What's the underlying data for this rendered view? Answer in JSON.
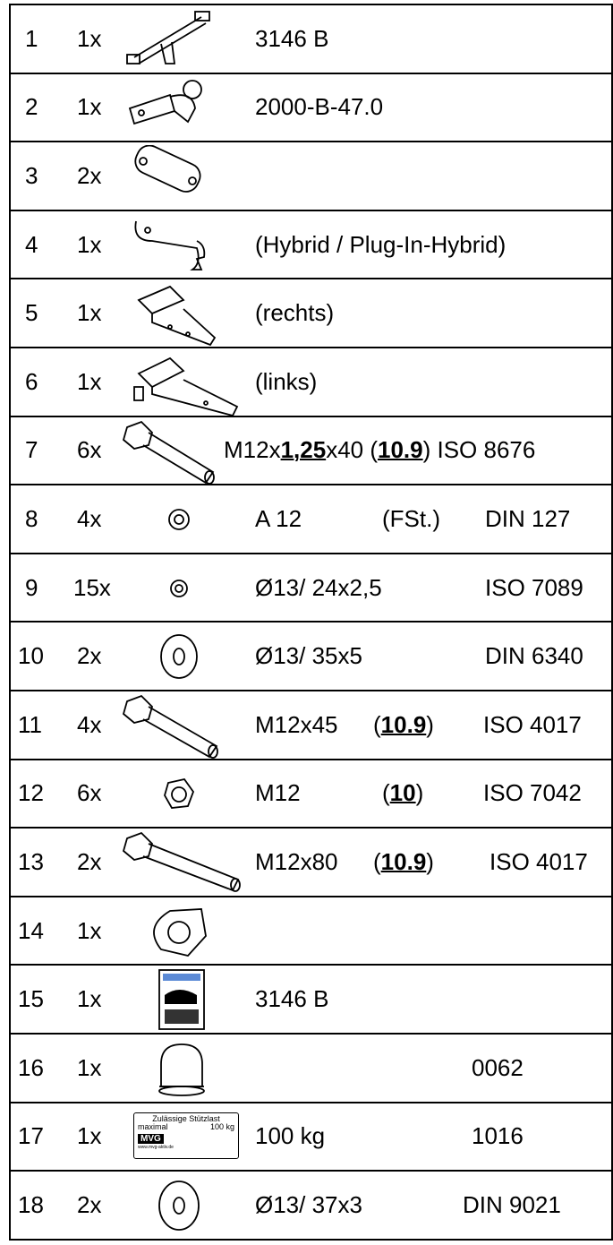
{
  "table": {
    "rows": [
      {
        "no": "1",
        "qty": "1x",
        "cells": [
          [
            {
              "text": "3146 B"
            }
          ]
        ]
      },
      {
        "no": "2",
        "qty": "1x",
        "cells": [
          [
            {
              "text": "2000-B-47.0"
            }
          ]
        ]
      },
      {
        "no": "3",
        "qty": "2x",
        "cells": []
      },
      {
        "no": "4",
        "qty": "1x",
        "cells": [
          [
            {
              "text": "(Hybrid / Plug-In-Hybrid)"
            }
          ]
        ]
      },
      {
        "no": "5",
        "qty": "1x",
        "cells": [
          [
            {
              "text": "(rechts)"
            }
          ]
        ]
      },
      {
        "no": "6",
        "qty": "1x",
        "cells": [
          [
            {
              "text": "(links)"
            }
          ]
        ]
      },
      {
        "no": "7",
        "qty": "6x",
        "cells": [
          [
            {
              "text": "M12x"
            },
            {
              "text": "1,25",
              "bold": true,
              "underline": true
            },
            {
              "text": "x40 ("
            },
            {
              "text": "10.9",
              "bold": true,
              "underline": true
            },
            {
              "text": ") ISO 8676"
            }
          ]
        ]
      },
      {
        "no": "8",
        "qty": "4x",
        "cells": [
          [
            {
              "text": "A 12"
            }
          ],
          [
            {
              "text": "(FSt.)"
            }
          ],
          [
            {
              "text": "DIN 127"
            }
          ]
        ]
      },
      {
        "no": "9",
        "qty": "15x",
        "cells": [
          [
            {
              "text": "Ø13/ 24x2,5"
            }
          ],
          [
            {
              "text": "ISO 7089"
            }
          ]
        ]
      },
      {
        "no": "10",
        "qty": "2x",
        "cells": [
          [
            {
              "text": "Ø13/ 35x5"
            }
          ],
          [
            {
              "text": "DIN 6340"
            }
          ]
        ]
      },
      {
        "no": "11",
        "qty": "4x",
        "cells": [
          [
            {
              "text": "M12x45"
            }
          ],
          [
            {
              "text": "("
            },
            {
              "text": "10.9",
              "bold": true,
              "underline": true
            },
            {
              "text": ")"
            }
          ],
          [
            {
              "text": "ISO 4017"
            }
          ]
        ]
      },
      {
        "no": "12",
        "qty": "6x",
        "cells": [
          [
            {
              "text": "M12"
            }
          ],
          [
            {
              "text": "("
            },
            {
              "text": "10",
              "bold": true,
              "underline": true
            },
            {
              "text": ")"
            }
          ],
          [
            {
              "text": "ISO 7042"
            }
          ]
        ]
      },
      {
        "no": "13",
        "qty": "2x",
        "cells": [
          [
            {
              "text": "M12x80"
            }
          ],
          [
            {
              "text": "("
            },
            {
              "text": "10.9",
              "bold": true,
              "underline": true
            },
            {
              "text": ")"
            }
          ],
          [
            {
              "text": "ISO 4017"
            }
          ]
        ]
      },
      {
        "no": "14",
        "qty": "1x",
        "cells": []
      },
      {
        "no": "15",
        "qty": "1x",
        "cells": [
          [
            {
              "text": "3146 B"
            }
          ]
        ]
      },
      {
        "no": "16",
        "qty": "1x",
        "cells": [
          [
            {
              "text": "0062"
            }
          ]
        ]
      },
      {
        "no": "17",
        "qty": "1x",
        "cells": [
          [
            {
              "text": "100 kg"
            }
          ],
          [
            {
              "text": "1016"
            }
          ]
        ],
        "sticker": {
          "line1": "Zulässige Stützlast",
          "line2": "maximal",
          "line3": "100 kg",
          "logo": "MVG",
          "url": "www.mvg-aktiv.de"
        }
      },
      {
        "no": "18",
        "qty": "2x",
        "cells": [
          [
            {
              "text": "Ø13/ 37x3"
            }
          ],
          [
            {
              "text": "DIN 9021"
            }
          ]
        ]
      }
    ]
  }
}
